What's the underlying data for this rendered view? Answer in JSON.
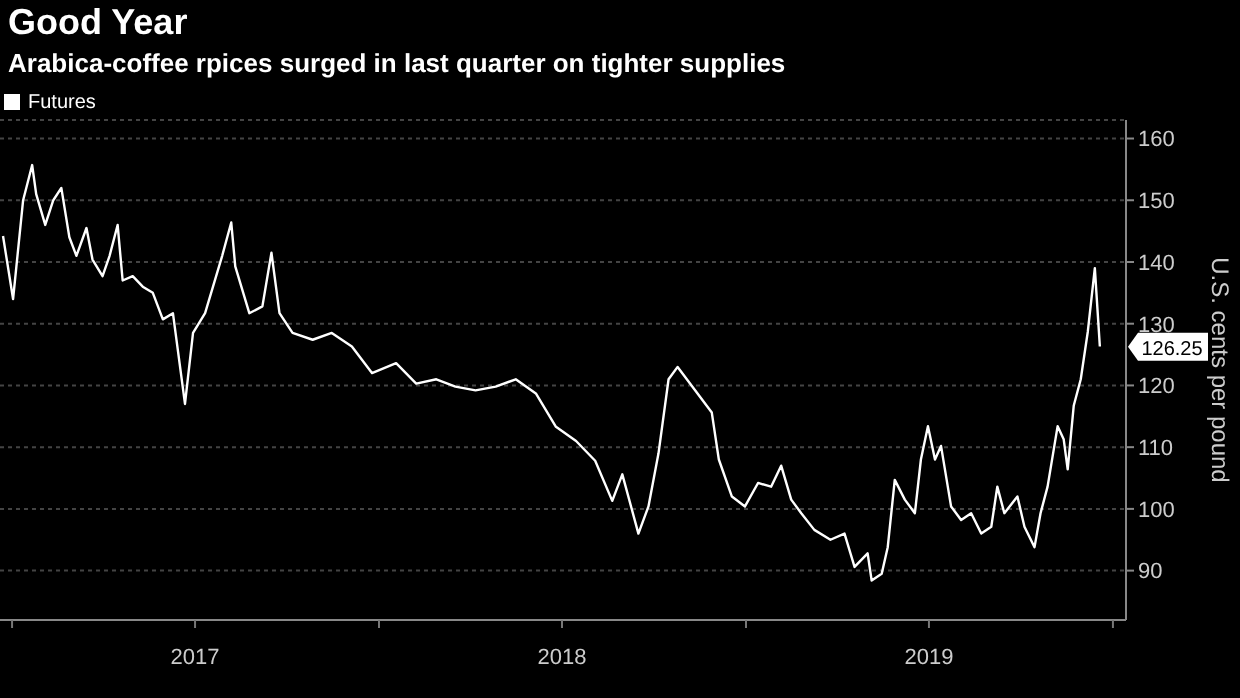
{
  "chart_data": {
    "type": "line",
    "title": "Good Year",
    "subtitle": "Arabica-coffee rpices surged in last quarter on tighter supplies",
    "ylabel": "U.S. cents per pound",
    "x": [
      "2016-12-23",
      "2017-01-02",
      "2017-01-12",
      "2017-01-21",
      "2017-01-25",
      "2017-02-03",
      "2017-02-11",
      "2017-02-19",
      "2017-02-27",
      "2017-03-06",
      "2017-03-16",
      "2017-03-22",
      "2017-04-01",
      "2017-04-08",
      "2017-04-16",
      "2017-04-21",
      "2017-05-01",
      "2017-05-11",
      "2017-05-21",
      "2017-05-31",
      "2017-06-10",
      "2017-06-22",
      "2017-06-30",
      "2017-07-12",
      "2017-07-29",
      "2017-08-07",
      "2017-08-11",
      "2017-08-25",
      "2017-09-07",
      "2017-09-16",
      "2017-09-24",
      "2017-10-07",
      "2017-10-27",
      "2017-11-15",
      "2017-12-05",
      "2017-12-25",
      "2018-01-18",
      "2018-02-07",
      "2018-02-27",
      "2018-03-18",
      "2018-04-07",
      "2018-04-27",
      "2018-05-17",
      "2018-06-06",
      "2018-06-26",
      "2018-07-16",
      "2018-08-04",
      "2018-08-21",
      "2018-08-31",
      "2018-09-16",
      "2018-09-26",
      "2018-10-06",
      "2018-10-16",
      "2018-10-25",
      "2018-11-28",
      "2018-12-05",
      "2018-12-18",
      "2018-12-31",
      "2019-01-13",
      "2019-01-26",
      "2019-02-05",
      "2019-02-15",
      "2019-02-25",
      "2019-03-10",
      "2019-03-26",
      "2019-04-09",
      "2019-04-19",
      "2019-05-02",
      "2019-05-06",
      "2019-05-16",
      "2019-05-22",
      "2019-05-29",
      "2019-06-08",
      "2019-06-18",
      "2019-06-24",
      "2019-07-01",
      "2019-07-08",
      "2019-07-14",
      "2019-07-24",
      "2019-08-03",
      "2019-08-13",
      "2019-08-23",
      "2019-09-02",
      "2019-09-08",
      "2019-09-15",
      "2019-09-28",
      "2019-10-05",
      "2019-10-15",
      "2019-10-21",
      "2019-10-28",
      "2019-11-07",
      "2019-11-13",
      "2019-11-17",
      "2019-11-23",
      "2019-11-30",
      "2019-12-07",
      "2019-12-14",
      "2019-12-19"
    ],
    "series": [
      {
        "name": "Futures",
        "color": "#ffffff",
        "values": [
          144.2,
          134,
          150,
          155.7,
          151,
          146,
          150,
          152,
          144,
          141,
          145.5,
          140.4,
          137.7,
          141,
          146,
          137,
          137.7,
          136,
          135,
          130.7,
          131.7,
          117,
          128.5,
          131.7,
          141,
          146.4,
          139.3,
          131.7,
          132.8,
          141.5,
          131.7,
          128.5,
          127.4,
          128.5,
          126.3,
          122,
          123.6,
          120.3,
          121,
          119.8,
          119.2,
          119.8,
          121,
          118.7,
          113.3,
          111,
          107.8,
          101.3,
          105.6,
          96,
          100.4,
          109,
          121,
          123,
          115.6,
          108,
          102,
          100.4,
          104.2,
          103.6,
          107,
          101.5,
          99.3,
          96.6,
          95,
          96,
          90.6,
          92.8,
          88.4,
          89.5,
          93.8,
          104.7,
          101.5,
          99.3,
          108,
          113.4,
          108,
          110.2,
          100.4,
          98.2,
          99.3,
          96,
          97.1,
          103.6,
          99.3,
          102,
          97.1,
          93.8,
          99.3,
          103.6,
          113.4,
          111.3,
          106.4,
          116.7,
          121,
          128.7,
          139,
          126.3
        ]
      }
    ],
    "xlim": [
      "2016-12-20",
      "2020-01-14"
    ],
    "xticks": [
      {
        "value": "2017-01-01",
        "label": null
      },
      {
        "value": "2017-07-02",
        "label": "2017"
      },
      {
        "value": "2018-01-01",
        "label": null
      },
      {
        "value": "2018-07-02",
        "label": "2018"
      },
      {
        "value": "2019-01-01",
        "label": null
      },
      {
        "value": "2019-07-02",
        "label": "2019"
      },
      {
        "value": "2020-01-01",
        "label": null
      }
    ],
    "ylim": [
      82,
      163
    ],
    "yticks": [
      90,
      100,
      110,
      120,
      130,
      140,
      150,
      160
    ],
    "annotations": [
      {
        "text": "126.25",
        "x": "2019-12-19",
        "y": 126.25
      }
    ],
    "grid": "y",
    "legend": "top left",
    "marker": "none",
    "line_style": "solid"
  }
}
